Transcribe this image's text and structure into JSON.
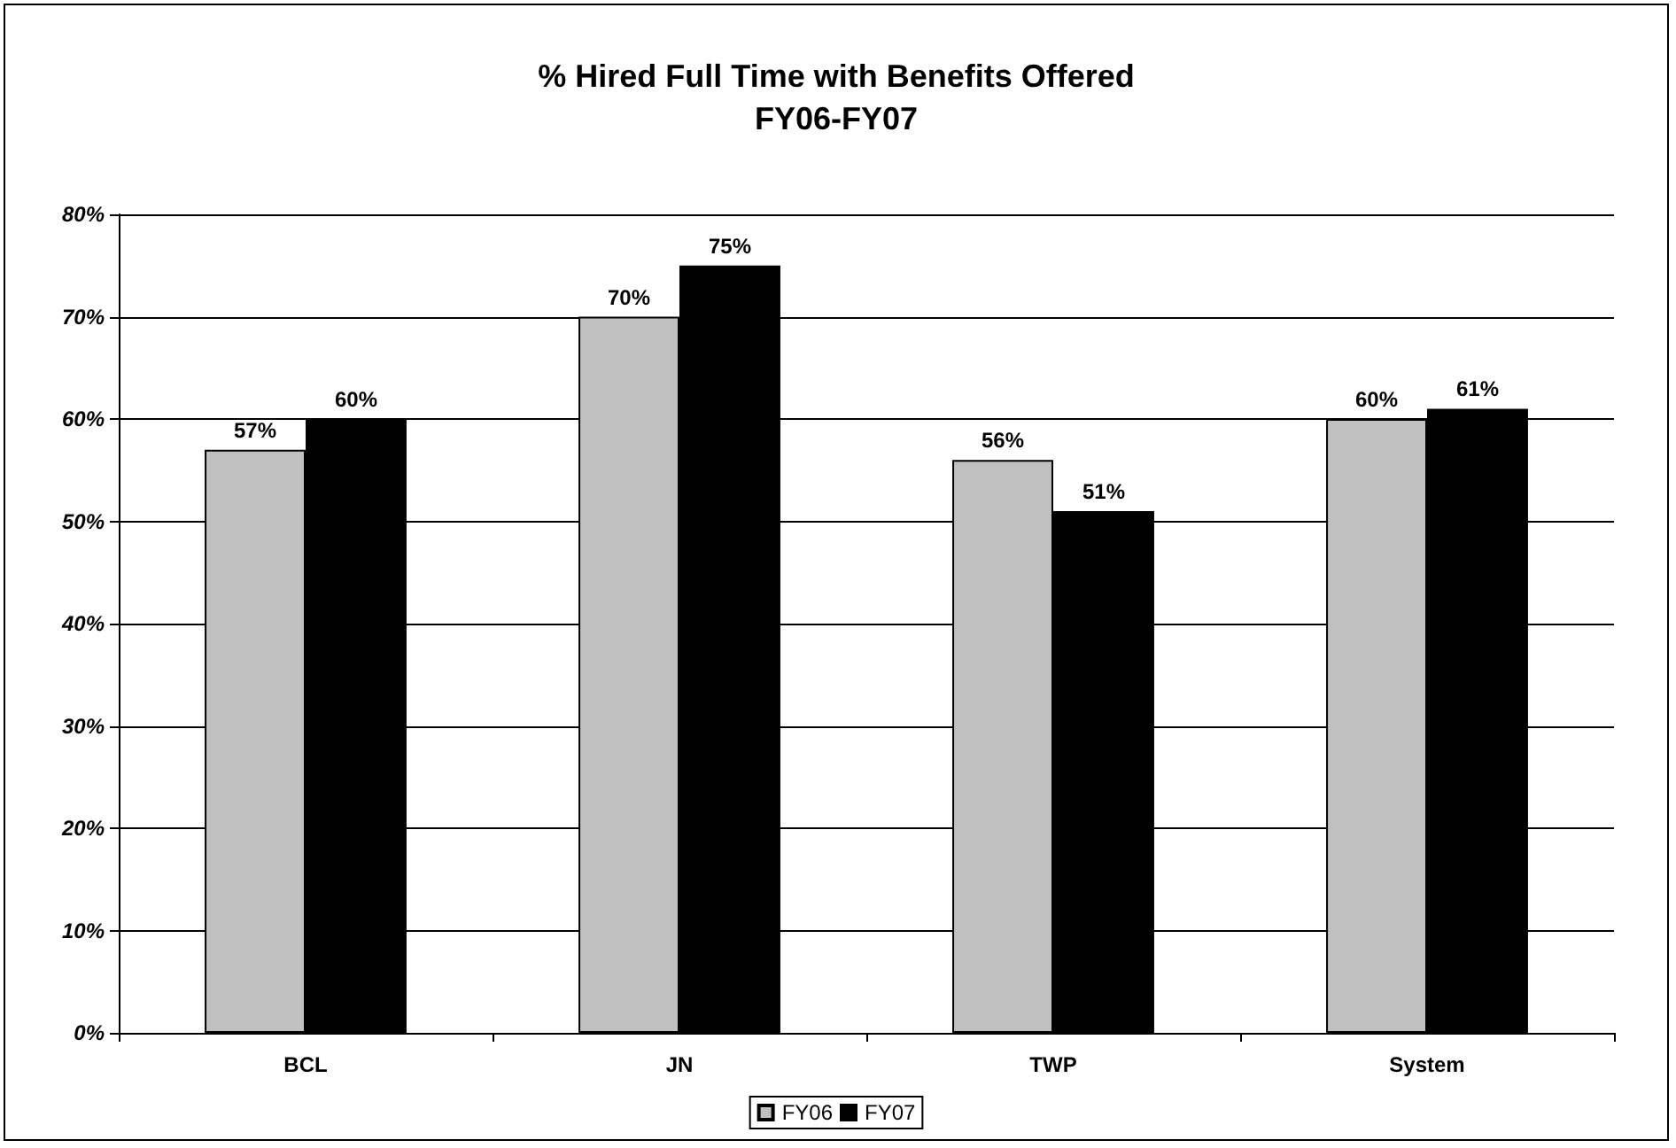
{
  "chart_data": {
    "type": "bar",
    "title": "% Hired Full Time with Benefits Offered",
    "subtitle": "FY06-FY07",
    "categories": [
      "BCL",
      "JN",
      "TWP",
      "System"
    ],
    "series": [
      {
        "name": "FY06",
        "color": "#c0c0c0",
        "values": [
          57,
          70,
          56,
          60
        ],
        "value_labels": [
          "57%",
          "70%",
          "56%",
          "60%"
        ]
      },
      {
        "name": "FY07",
        "color": "#000000",
        "values": [
          60,
          75,
          51,
          61
        ],
        "value_labels": [
          "60%",
          "75%",
          "51%",
          "61%"
        ]
      }
    ],
    "ylim": [
      0,
      80
    ],
    "yticks": [
      {
        "value": 0,
        "label": "0%"
      },
      {
        "value": 10,
        "label": "10%"
      },
      {
        "value": 20,
        "label": "20%"
      },
      {
        "value": 30,
        "label": "30%"
      },
      {
        "value": 40,
        "label": "40%"
      },
      {
        "value": 50,
        "label": "50%"
      },
      {
        "value": 60,
        "label": "60%"
      },
      {
        "value": 70,
        "label": "70%"
      },
      {
        "value": 80,
        "label": "80%"
      }
    ],
    "grid": "y",
    "legend": "bottom"
  }
}
